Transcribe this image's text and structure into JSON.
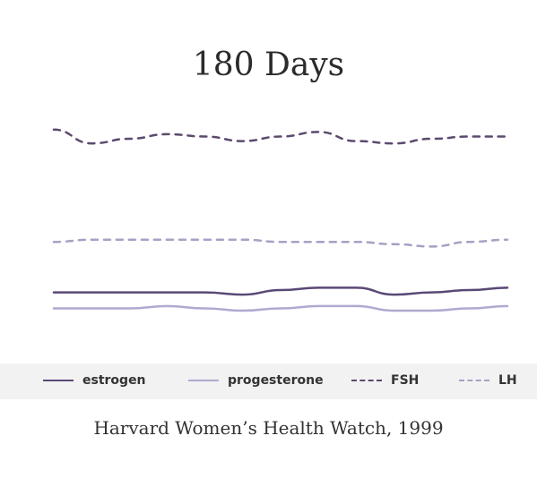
{
  "chart_data": {
    "type": "line",
    "title": "180 Days",
    "xlabel": "",
    "ylabel": "",
    "grid": false,
    "legend_position": "bottom",
    "x": [
      0,
      15,
      30,
      45,
      60,
      75,
      90,
      105,
      120,
      135,
      150,
      165,
      180
    ],
    "ylim": [
      0,
      100
    ],
    "series": [
      {
        "name": "FSH",
        "color": "#5b4a6e",
        "dash": "dashed",
        "values": [
          95,
          89,
          91,
          93,
          92,
          90,
          92,
          94,
          90,
          89,
          91,
          92,
          92
        ]
      },
      {
        "name": "LH",
        "color": "#a4a2c4",
        "dash": "dashed",
        "values": [
          46,
          47,
          47,
          47,
          47,
          47,
          46,
          46,
          46,
          45,
          44,
          46,
          47
        ]
      },
      {
        "name": "estrogen",
        "color": "#5a4876",
        "dash": "solid",
        "values": [
          24,
          24,
          24,
          24,
          24,
          23,
          25,
          26,
          26,
          23,
          24,
          25,
          26
        ]
      },
      {
        "name": "progesterone",
        "color": "#aeaad0",
        "dash": "solid",
        "values": [
          17,
          17,
          17,
          18,
          17,
          16,
          17,
          18,
          18,
          16,
          16,
          17,
          18
        ]
      }
    ]
  },
  "source": "Harvard Women’s Health Watch, 1999"
}
